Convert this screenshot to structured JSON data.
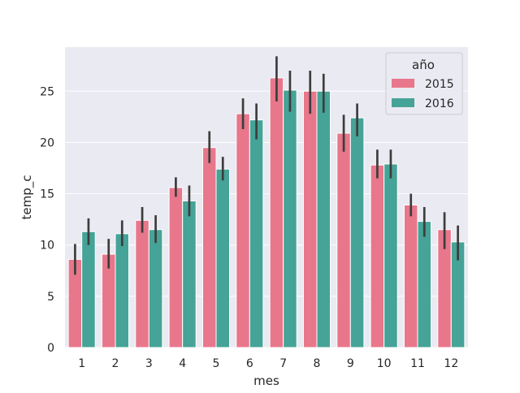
{
  "chart_data": {
    "type": "bar",
    "xlabel": "mes",
    "ylabel": "temp_c",
    "categories": [
      "1",
      "2",
      "3",
      "4",
      "5",
      "6",
      "7",
      "8",
      "9",
      "10",
      "11",
      "12"
    ],
    "yticks": [
      0,
      5,
      10,
      15,
      20,
      25
    ],
    "ylim": [
      0,
      29.3
    ],
    "grid": true,
    "legend": {
      "title": "año",
      "placement": "top-right"
    },
    "series": [
      {
        "name": "2015",
        "color": "#e8778b",
        "values": [
          8.6,
          9.1,
          12.4,
          15.6,
          19.5,
          22.8,
          26.3,
          25.0,
          20.9,
          17.8,
          13.9,
          11.5
        ],
        "ci_low": [
          7.1,
          7.7,
          11.2,
          14.7,
          18.0,
          21.3,
          24.0,
          22.8,
          19.1,
          16.5,
          12.8,
          9.6
        ],
        "ci_high": [
          10.1,
          10.6,
          13.7,
          16.6,
          21.1,
          24.3,
          28.4,
          27.0,
          22.7,
          19.3,
          15.0,
          13.2
        ]
      },
      {
        "name": "2016",
        "color": "#45a397",
        "values": [
          11.3,
          11.1,
          11.5,
          14.3,
          17.4,
          22.2,
          25.1,
          25.0,
          22.4,
          17.9,
          12.3,
          10.3
        ],
        "ci_low": [
          10.0,
          9.9,
          10.2,
          12.8,
          16.3,
          20.3,
          23.0,
          22.9,
          20.6,
          16.5,
          10.8,
          8.5
        ],
        "ci_high": [
          12.6,
          12.4,
          12.9,
          15.8,
          18.6,
          23.8,
          27.0,
          26.7,
          23.8,
          19.3,
          13.7,
          11.9
        ]
      }
    ]
  }
}
